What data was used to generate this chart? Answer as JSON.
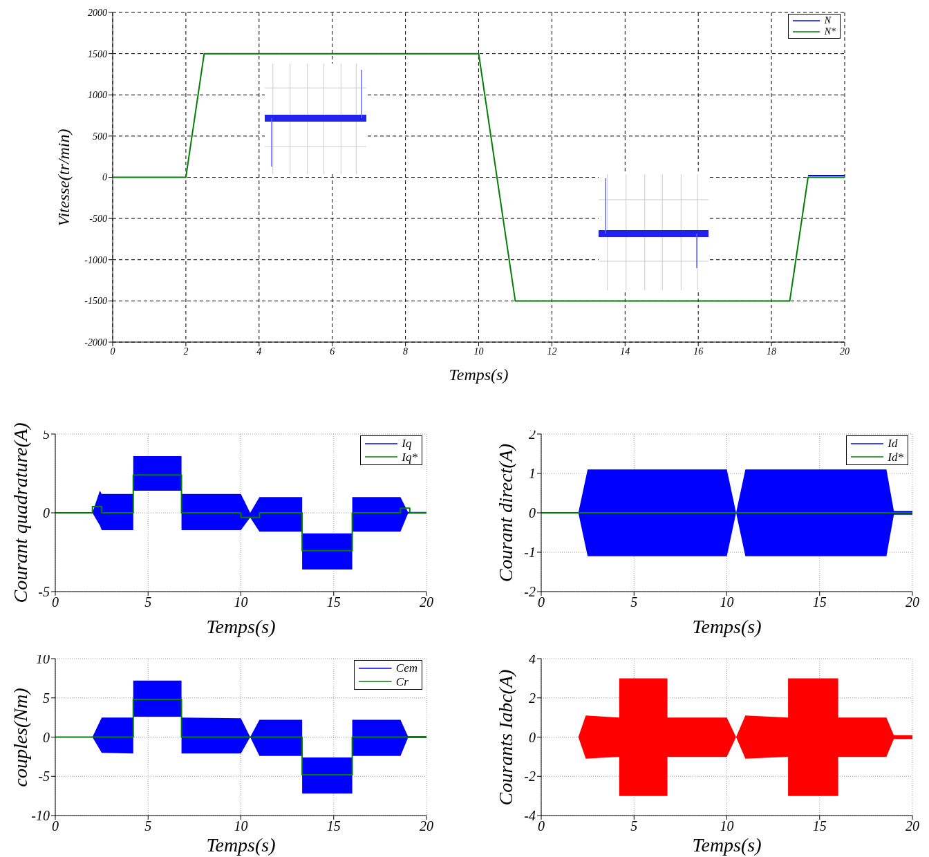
{
  "chart_data": [
    {
      "type": "line",
      "xlabel": "Temps(s)",
      "ylabel": "Vitesse(tr/min)",
      "xlim": [
        0,
        20
      ],
      "xticks": [
        0,
        2,
        4,
        6,
        8,
        10,
        12,
        14,
        16,
        18,
        20
      ],
      "ylim": [
        -2000,
        2000
      ],
      "yticks": [
        -2000,
        -1500,
        -1000,
        -500,
        0,
        500,
        1000,
        1500,
        2000
      ],
      "grid": true,
      "legend": "top right",
      "series": [
        {
          "name": "N",
          "color": "#0000ff",
          "x": [
            19,
            20
          ],
          "values": [
            20,
            20
          ]
        },
        {
          "name": "N*",
          "color": "#008000",
          "x": [
            0,
            2,
            2.5,
            10,
            11,
            18.5,
            19,
            20
          ],
          "values": [
            0,
            0,
            1500,
            1500,
            -1500,
            -1500,
            0,
            0
          ]
        }
      ]
    },
    {
      "type": "line",
      "xlabel": "Temps(s)",
      "ylabel": "Courant quadrature(A)",
      "xlim": [
        0,
        20
      ],
      "xticks": [
        0,
        5,
        10,
        15,
        20
      ],
      "ylim": [
        -5,
        5
      ],
      "yticks": [
        -5,
        0,
        5
      ],
      "grid": true,
      "legend": "top right",
      "series": [
        {
          "name": "Iq",
          "color": "#0000ff",
          "x": [
            0,
            2,
            2.4,
            2.5,
            4.2,
            4.2,
            6.8,
            6.8,
            10,
            10.5,
            11,
            13.3,
            13.3,
            16,
            16,
            18.6,
            19,
            20
          ],
          "values": [
            null,
            null,
            null,
            null,
            null,
            null,
            null,
            null,
            null,
            null,
            null,
            null,
            null,
            null,
            null,
            null,
            null,
            null
          ],
          "lower": [
            0,
            0,
            -0.8,
            -1.1,
            -1.1,
            1.4,
            1.4,
            -1.1,
            -1.1,
            -0.3,
            -1.2,
            -1.2,
            -3.6,
            -3.6,
            -1.2,
            -1.2,
            -0.05,
            -0.05
          ],
          "upper": [
            0,
            0,
            1.4,
            1.2,
            1.2,
            3.6,
            3.6,
            1.2,
            1.2,
            0,
            1,
            1,
            -1.3,
            -1.3,
            1,
            1,
            0.05,
            0.05
          ]
        },
        {
          "name": "Iq*",
          "color": "#008000",
          "x": [
            0,
            2,
            2,
            2.5,
            2.5,
            4.2,
            4.2,
            6.8,
            6.8,
            10,
            10,
            11,
            11,
            13.3,
            13.3,
            16,
            16,
            18.6,
            18.6,
            19.1,
            19.1,
            20
          ],
          "values": [
            0,
            0,
            0.4,
            0.4,
            0,
            0,
            2.4,
            2.4,
            0,
            0,
            -0.3,
            -0.3,
            0,
            0,
            -2.4,
            -2.4,
            0,
            0,
            0.3,
            0.3,
            0,
            0
          ]
        }
      ]
    },
    {
      "type": "line",
      "xlabel": "Temps(s)",
      "ylabel": "Courant direct(A)",
      "xlim": [
        0,
        20
      ],
      "xticks": [
        0,
        5,
        10,
        15,
        20
      ],
      "ylim": [
        -2,
        2
      ],
      "yticks": [
        -2,
        -1,
        0,
        1,
        2
      ],
      "grid": true,
      "legend": "top right",
      "series": [
        {
          "name": "Id",
          "color": "#0000ff",
          "x": [
            0,
            2,
            2.5,
            10,
            10.5,
            11,
            18.6,
            19,
            20
          ],
          "values": [
            0,
            0,
            0,
            0,
            0,
            0,
            0,
            0,
            0
          ],
          "lower": [
            0,
            0,
            -1.1,
            -1.1,
            0,
            -1.1,
            -1.1,
            -0.05,
            -0.05
          ],
          "upper": [
            0,
            0,
            1.1,
            1.1,
            0,
            1.1,
            1.1,
            0.05,
            0.05
          ]
        },
        {
          "name": "Id*",
          "color": "#008000",
          "x": [
            0,
            20
          ],
          "values": [
            0,
            0
          ]
        }
      ]
    },
    {
      "type": "line",
      "xlabel": "Temps(s)",
      "ylabel": "couples(Nm)",
      "xlim": [
        0,
        20
      ],
      "xticks": [
        0,
        5,
        10,
        15,
        20
      ],
      "ylim": [
        -10,
        10
      ],
      "yticks": [
        -10,
        -5,
        0,
        5,
        10
      ],
      "grid": true,
      "legend": "top right",
      "series": [
        {
          "name": "Cem",
          "color": "#0000ff",
          "x": [
            0,
            2,
            2.5,
            4.2,
            4.2,
            6.8,
            6.8,
            10,
            10.5,
            11,
            13.3,
            13.3,
            16,
            16,
            18.6,
            19,
            20
          ],
          "values": [
            null,
            null,
            null,
            null,
            null,
            null,
            null,
            null,
            null,
            null,
            null,
            null,
            null,
            null,
            null,
            null,
            null
          ],
          "lower": [
            0,
            0,
            -2,
            -2.1,
            2.6,
            2.6,
            -2.1,
            -2.1,
            0,
            -2.4,
            -2.4,
            -7.2,
            -7.2,
            -2.4,
            -2.4,
            -0.1,
            -0.1
          ],
          "upper": [
            0,
            0,
            2.5,
            2.5,
            7.2,
            7.2,
            2.5,
            2.4,
            0,
            2.2,
            2.2,
            -2.6,
            -2.6,
            2.2,
            2.2,
            0.1,
            0.1
          ]
        },
        {
          "name": "Cr",
          "color": "#008000",
          "x": [
            0,
            4.2,
            4.2,
            6.8,
            6.8,
            13.3,
            13.3,
            16,
            16,
            20
          ],
          "values": [
            0,
            0,
            4.8,
            4.8,
            0,
            0,
            -4.8,
            -4.8,
            0,
            0
          ]
        }
      ]
    },
    {
      "type": "line",
      "xlabel": "Temps(s)",
      "ylabel": "Courants Iabc(A)",
      "xlim": [
        0,
        20
      ],
      "xticks": [
        0,
        5,
        10,
        15,
        20
      ],
      "ylim": [
        -4,
        4
      ],
      "yticks": [
        -4,
        -2,
        0,
        2,
        4
      ],
      "grid": true,
      "series": [
        {
          "color": "#ff0000",
          "x": [
            0,
            2,
            2.4,
            4.2,
            4.2,
            6.8,
            6.8,
            10,
            10.5,
            11,
            13.3,
            13.3,
            16,
            16,
            18.6,
            19,
            20
          ],
          "values": [
            null,
            null,
            null,
            null,
            null,
            null,
            null,
            null,
            null,
            null,
            null,
            null,
            null,
            null,
            null,
            null,
            null
          ],
          "lower": [
            0,
            0,
            -1.1,
            -1,
            -3,
            -3,
            -1,
            -1,
            0,
            -1.1,
            -1,
            -3,
            -3,
            -1,
            -1,
            -0.1,
            -0.1
          ],
          "upper": [
            0,
            0,
            1.1,
            1,
            3,
            3,
            1,
            1,
            0,
            1.1,
            1,
            3,
            3,
            1,
            1,
            0.1,
            0.1
          ]
        }
      ]
    }
  ]
}
